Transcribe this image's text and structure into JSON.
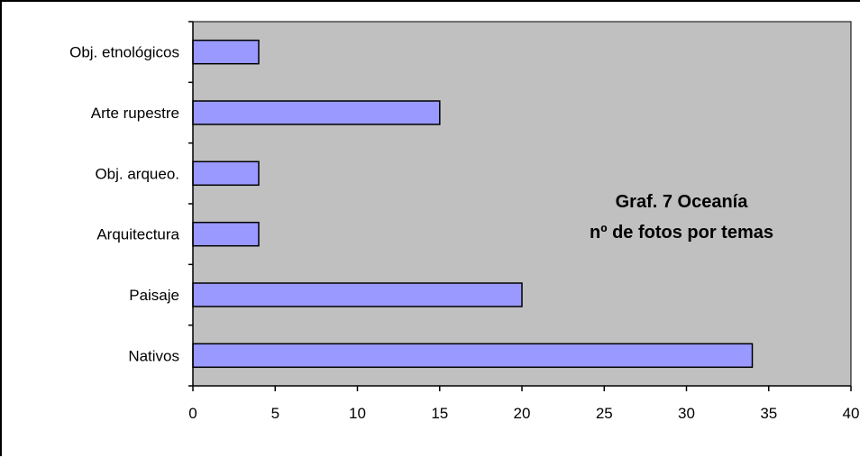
{
  "chart_data": {
    "type": "bar",
    "orientation": "horizontal",
    "title_lines": [
      "Graf. 7 Oceanía",
      "nº de fotos por temas"
    ],
    "categories": [
      "Obj. etnológicos",
      "Arte rupestre",
      "Obj. arqueo.",
      "Arquitectura",
      "Paisaje",
      "Nativos"
    ],
    "values": [
      4,
      15,
      4,
      4,
      20,
      34
    ],
    "xlim": [
      0,
      40
    ],
    "x_ticks": [
      "0",
      "5",
      "10",
      "15",
      "20",
      "25",
      "30",
      "35",
      "40"
    ],
    "grid": false,
    "legend": "none",
    "colors": {
      "plot_background": "#c0c0c0",
      "bar_fill": "#9999ff",
      "bar_stroke": "#000000"
    }
  }
}
